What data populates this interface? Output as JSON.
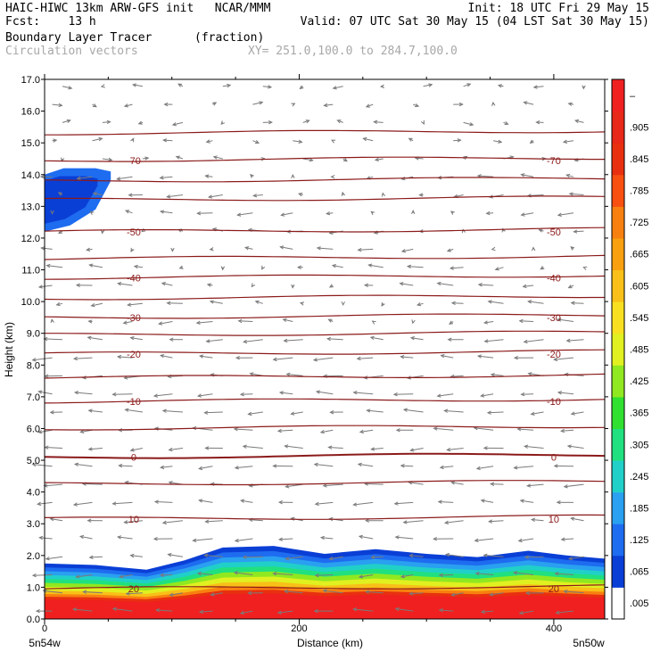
{
  "header": {
    "line1_left": "HAIC-HIWC 13km ARW-GFS init   NCAR/MMM",
    "line1_right": "Init: 18 UTC Fri 29 May 15",
    "line2_left": "Fcst:    13 h",
    "line2_right": "Valid: 07 UTC Sat 30 May 15 (04 LST Sat 30 May 15)",
    "line3_left": "Boundary Layer Tracer",
    "line3_units": "(fraction)",
    "line4_left": "Circulation vectors",
    "line4_right": "XY= 251.0,100.0 to 284.7,100.0"
  },
  "chart_data": {
    "type": "heatmap",
    "title": "Boundary Layer Tracer",
    "xlabel": "Distance (km)",
    "ylabel": "Height (km)",
    "xlim": [
      0,
      440
    ],
    "ylim": [
      0,
      17
    ],
    "x_ticks": [
      0,
      200,
      400
    ],
    "y_ticks": [
      "0.0",
      "1.0",
      "2.0",
      "3.0",
      "4.0",
      "5.0",
      "6.0",
      "7.0",
      "8.0",
      "9.0",
      "10.0",
      "11.0",
      "12.0",
      "13.0",
      "14.0",
      "15.0",
      "16.0",
      "17.0"
    ],
    "x_end_labels": {
      "left": "5n54w",
      "right": "5n50w"
    },
    "colorbar": {
      "labels": [
        ".005",
        ".065",
        ".125",
        ".185",
        ".245",
        ".305",
        ".365",
        ".425",
        ".485",
        ".545",
        ".605",
        ".665",
        ".725",
        ".785",
        ".845",
        ".905",
        "–"
      ],
      "colors": [
        "#ffffff",
        "#0a3fd6",
        "#1e6cf0",
        "#2aa0f0",
        "#20d0c8",
        "#20e080",
        "#30e030",
        "#90e820",
        "#e0f020",
        "#f8e020",
        "#f8c018",
        "#f8a010",
        "#f88010",
        "#f85010",
        "#e83010",
        "#e82818",
        "#f02020"
      ]
    },
    "tracer_top_km": [
      {
        "x": 0,
        "z": 1.75
      },
      {
        "x": 40,
        "z": 1.7
      },
      {
        "x": 80,
        "z": 1.55
      },
      {
        "x": 110,
        "z": 1.85
      },
      {
        "x": 140,
        "z": 2.25
      },
      {
        "x": 180,
        "z": 2.3
      },
      {
        "x": 220,
        "z": 2.05
      },
      {
        "x": 260,
        "z": 2.2
      },
      {
        "x": 300,
        "z": 2.05
      },
      {
        "x": 340,
        "z": 1.95
      },
      {
        "x": 380,
        "z": 2.15
      },
      {
        "x": 410,
        "z": 2.0
      },
      {
        "x": 440,
        "z": 1.9
      }
    ],
    "upper_blob_km": [
      {
        "x": 0,
        "z": 12.2
      },
      {
        "x": 20,
        "z": 12.4
      },
      {
        "x": 40,
        "z": 12.9
      },
      {
        "x": 52,
        "z": 13.8
      },
      {
        "x": 52,
        "z": 14.1
      },
      {
        "x": 40,
        "z": 14.2
      },
      {
        "x": 15,
        "z": 14.2
      },
      {
        "x": 0,
        "z": 14.0
      }
    ],
    "isotherms": [
      {
        "label": "20",
        "z": 0.95
      },
      {
        "label": "10",
        "z": 3.15
      },
      {
        "label": "",
        "z": 4.25
      },
      {
        "label": "0",
        "z": 5.1
      },
      {
        "label": "",
        "z": 6.0
      },
      {
        "label": "-10",
        "z": 6.85
      },
      {
        "label": "",
        "z": 7.6
      },
      {
        "label": "-20",
        "z": 8.35
      },
      {
        "label": "",
        "z": 8.95
      },
      {
        "label": "-30",
        "z": 9.5
      },
      {
        "label": "",
        "z": 10.1
      },
      {
        "label": "-40",
        "z": 10.75
      },
      {
        "label": "",
        "z": 11.35
      },
      {
        "label": "-50",
        "z": 12.2
      },
      {
        "label": "",
        "z": 13.2
      },
      {
        "label": "",
        "z": 13.8
      },
      {
        "label": "-70",
        "z": 14.45
      },
      {
        "label": "",
        "z": 15.3
      }
    ],
    "wind": {
      "low_u": -1,
      "mid_u": -0.8,
      "high_u": 0.5
    }
  }
}
